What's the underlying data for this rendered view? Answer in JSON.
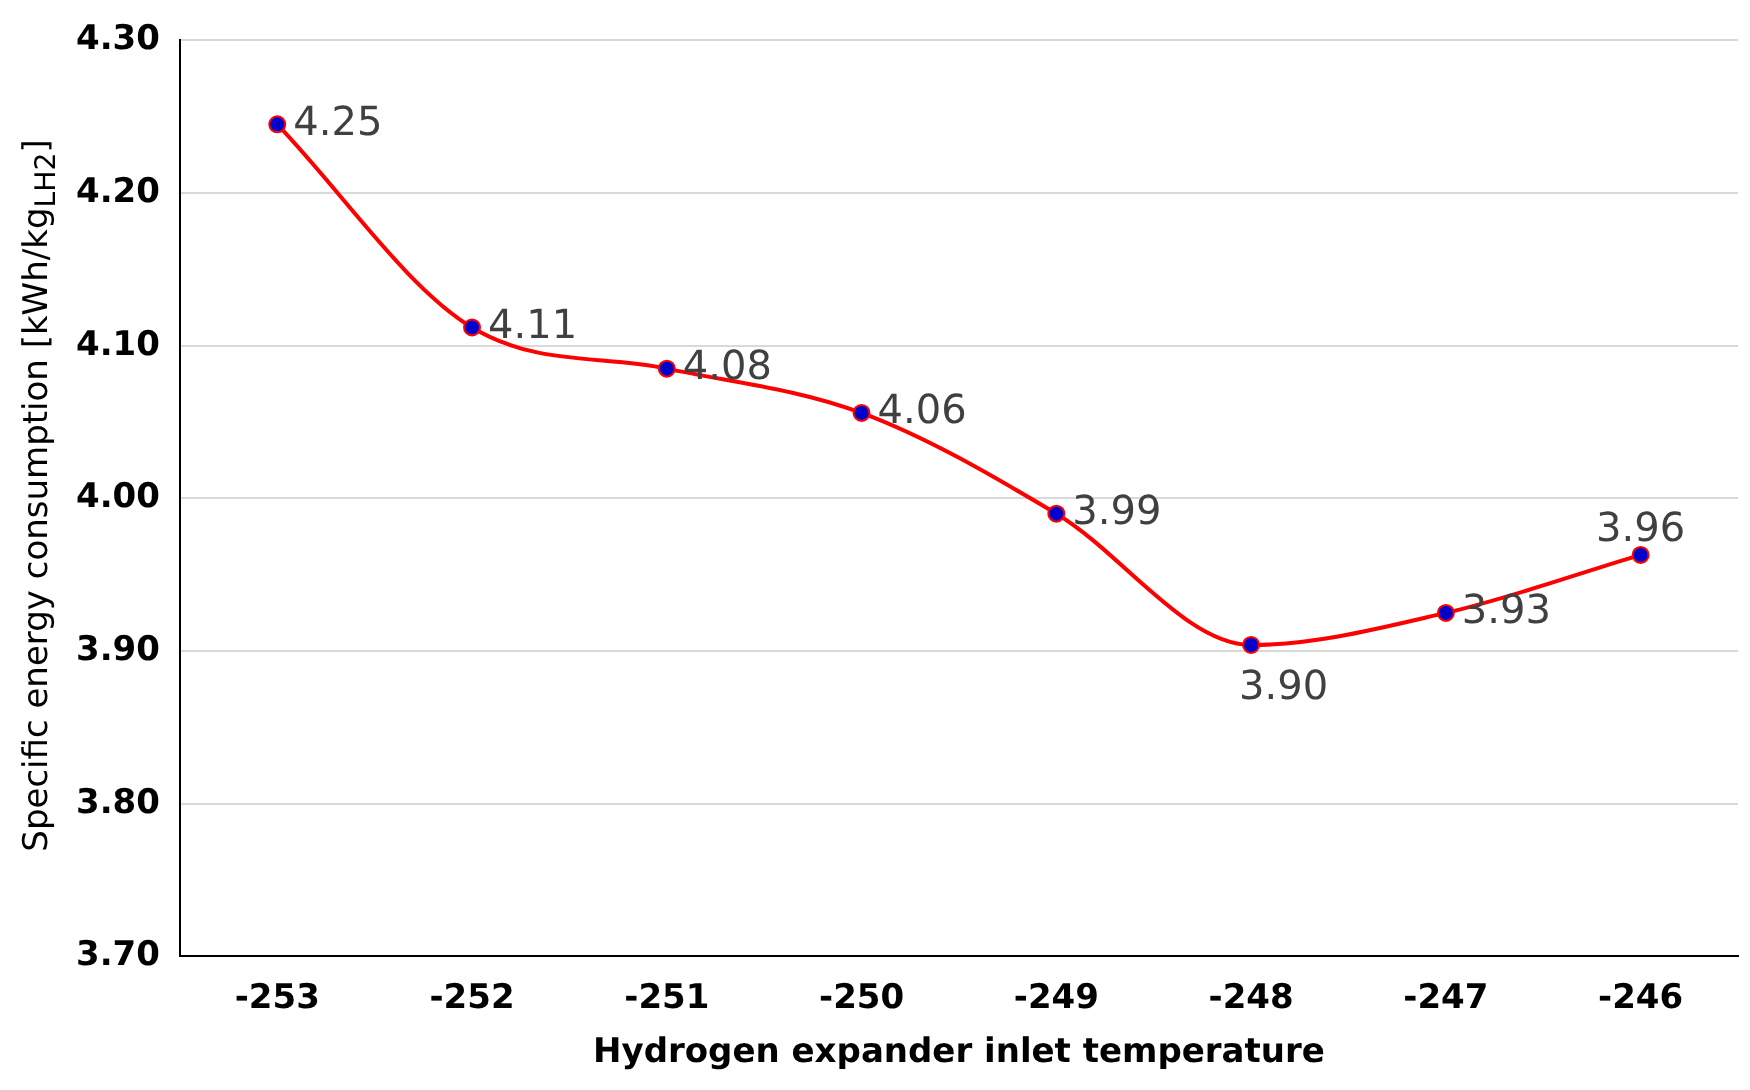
{
  "chart_data": {
    "type": "line",
    "xlabel": "Hydrogen expander inlet temperature",
    "ylabel": "Specific energy consumption [kWh/kg$_{LH2}$]",
    "categories": [
      "-253",
      "-252",
      "-251",
      "-250",
      "-249",
      "-248",
      "-247",
      "-246"
    ],
    "series": [
      {
        "color": "#ff0000",
        "values": [
          4.245,
          4.112,
          4.085,
          4.056,
          3.99,
          3.904,
          3.925,
          3.963
        ],
        "value_labels": [
          "4.25",
          "4.11",
          "4.08",
          "4.06",
          "3.99",
          "3.90",
          "3.93",
          "3.96"
        ]
      }
    ],
    "ylim": [
      3.7,
      4.3
    ],
    "yticks": [
      {
        "value": 3.7,
        "label": "3.70"
      },
      {
        "value": 3.8,
        "label": "3.80"
      },
      {
        "value": 3.9,
        "label": "3.90"
      },
      {
        "value": 4.0,
        "label": "4.00"
      },
      {
        "value": 4.1,
        "label": "4.10"
      },
      {
        "value": 4.2,
        "label": "4.20"
      },
      {
        "value": 4.3,
        "label": "4.30"
      }
    ],
    "grid": "y",
    "legend": false,
    "marker": "circle",
    "line_style": "solid"
  }
}
